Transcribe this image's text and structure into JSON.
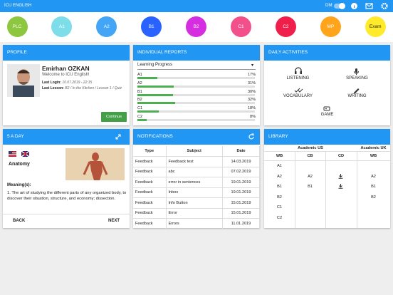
{
  "app_bar": {
    "title": "ICU ENGLISH",
    "dm_label": "DM:"
  },
  "levels": [
    {
      "label": "PLC",
      "color": "#8dc63f"
    },
    {
      "label": "A1",
      "color": "#7ddde8"
    },
    {
      "label": "A2",
      "color": "#42a5f5"
    },
    {
      "label": "B1",
      "color": "#2962ff"
    },
    {
      "label": "B2",
      "color": "#d42ee0"
    },
    {
      "label": "C1",
      "color": "#f2508a"
    },
    {
      "label": "C2",
      "color": "#f01e4a"
    },
    {
      "label": "MP",
      "color": "#ffa41b"
    },
    {
      "label": "Exam",
      "color": "#ffeb2a"
    }
  ],
  "profile": {
    "title": "PROFILE",
    "name": "Emirhan OZKAN",
    "welcome": "Welcome to ICU English!",
    "last_login_label": "Last Login:",
    "last_login": "10.07.2019 - 22:15",
    "last_lesson_label": "Last Lesson:",
    "last_lesson": "B2 / In the Kitchen / Lesson 1 / Quiz",
    "button": "Continue"
  },
  "reports": {
    "title": "INDIVIDUAL REPORTS",
    "dropdown": "Learning Progress",
    "rows": [
      {
        "label": "A1",
        "value": 17,
        "value_label": "17%"
      },
      {
        "label": "A2",
        "value": 31,
        "value_label": "31%"
      },
      {
        "label": "B1",
        "value": 30,
        "value_label": "30%"
      },
      {
        "label": "B2",
        "value": 32,
        "value_label": "32%"
      },
      {
        "label": "C1",
        "value": 18,
        "value_label": "18%"
      },
      {
        "label": "C2",
        "value": 8,
        "value_label": "8%"
      }
    ]
  },
  "activities": {
    "title": "DAILY ACTIVITIES",
    "listening": "LISTENING",
    "speaking": "SPEAKING",
    "vocabulary": "VOCABULARY",
    "writing": "WRITING",
    "game": "GAME"
  },
  "five_a_day": {
    "title": "5 A DAY",
    "word": "Anatomy",
    "meanings_label": "Meaning(s):",
    "meaning": "1. The art of studying the different parts of any organized body, to discover their situation, structure, and economy; dissection.",
    "back": "BACK",
    "next": "NEXT"
  },
  "notifications": {
    "title": "NOTIFICATIONS",
    "columns": [
      "Type",
      "Subject",
      "Date"
    ],
    "rows": [
      [
        "Feedback",
        "Feedback test",
        "14.03.2019"
      ],
      [
        "Feedback",
        "abc",
        "07.02.2019"
      ],
      [
        "Feedback",
        "error in sentences",
        "19.01.2019"
      ],
      [
        "Feedback",
        "Inbox",
        "19.01.2019"
      ],
      [
        "Feedback",
        "Info Button",
        "15.01.2019"
      ],
      [
        "Feedback",
        "Error",
        "15.01.2019"
      ],
      [
        "Feedback",
        "Errors",
        "11.01.2019"
      ]
    ]
  },
  "library": {
    "title": "LIBRARY",
    "groups": [
      "Academic US",
      "Academic UK"
    ],
    "columns": [
      "WB",
      "CB",
      "CD",
      "WB"
    ],
    "us_wb": [
      "A1",
      "A2",
      "B1",
      "B2",
      "C1",
      "C2"
    ],
    "us_cb": [
      "A2",
      "B1"
    ],
    "uk_wb": [
      "A2",
      "B1",
      "B2"
    ]
  }
}
